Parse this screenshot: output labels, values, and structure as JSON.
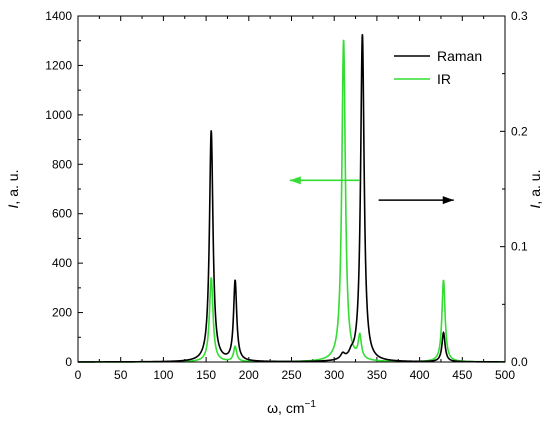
{
  "chart_data": {
    "type": "line",
    "x_axis": {
      "label": "ω, cm",
      "label_superscript": "−1",
      "range": [
        0,
        500
      ],
      "ticks": [
        0,
        50,
        100,
        150,
        200,
        250,
        300,
        350,
        400,
        450,
        500
      ]
    },
    "y_axis_left": {
      "label_italic": "I",
      "label_rest": ", a. u.",
      "range": [
        0,
        1400
      ],
      "ticks": [
        0,
        200,
        400,
        600,
        800,
        1000,
        1200,
        1400
      ]
    },
    "y_axis_right": {
      "label_italic": "I",
      "label_rest": ", a. u.",
      "range": [
        0,
        0.3
      ],
      "ticks": [
        "0.0",
        "0.1",
        "0.2",
        "0.3"
      ]
    },
    "grid": false,
    "legend": {
      "placement": "top-right",
      "entries": [
        {
          "name": "Raman",
          "color": "#000000"
        },
        {
          "name": "IR",
          "color": "#33dd33"
        }
      ]
    },
    "series": [
      {
        "name": "Raman",
        "axis": "left",
        "color": "#000000",
        "peaks": [
          {
            "x": 156,
            "height": 935,
            "hwhm": 2.5
          },
          {
            "x": 184,
            "height": 325,
            "hwhm": 2.2
          },
          {
            "x": 310,
            "height": 22,
            "hwhm": 3.0
          },
          {
            "x": 320,
            "height": 18,
            "hwhm": 3.0
          },
          {
            "x": 333,
            "height": 1325,
            "hwhm": 2.5
          },
          {
            "x": 428,
            "height": 118,
            "hwhm": 2.2
          }
        ]
      },
      {
        "name": "IR",
        "axis": "right",
        "color": "#33dd33",
        "peaks": [
          {
            "x": 156,
            "height": 0.073,
            "hwhm": 2.5
          },
          {
            "x": 184,
            "height": 0.013,
            "hwhm": 2.2
          },
          {
            "x": 311,
            "height": 0.279,
            "hwhm": 2.5
          },
          {
            "x": 330,
            "height": 0.02,
            "hwhm": 2.2
          },
          {
            "x": 428,
            "height": 0.071,
            "hwhm": 2.2
          }
        ]
      }
    ],
    "annotations": [
      {
        "type": "arrow",
        "direction": "left",
        "color": "#33dd33",
        "from_x": 330,
        "to_x": 248,
        "y_left": 735
      },
      {
        "type": "arrow",
        "direction": "right",
        "color": "#000000",
        "from_x": 352,
        "to_x": 440,
        "y_left": 655
      }
    ]
  }
}
